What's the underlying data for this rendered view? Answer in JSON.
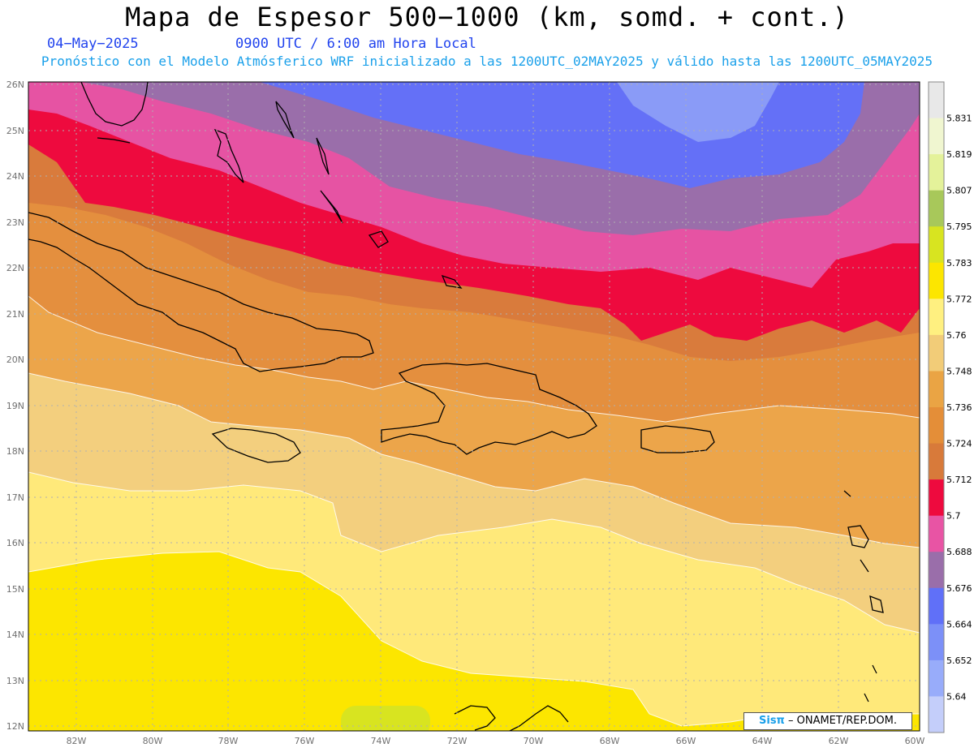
{
  "header": {
    "title": "Mapa de Espesor 500−1000 (km, somd. + cont.)",
    "date": "04−May−2025",
    "time": "0900 UTC / 6:00 am Hora Local",
    "forecast": "Pronóstico con el Modelo Atmósferico WRF inicializado a las 1200UTC_02MAY2025 y válido hasta las  1200UTC_05MAY2025"
  },
  "axes": {
    "lat_labels": [
      "26N",
      "25N",
      "24N",
      "23N",
      "22N",
      "21N",
      "20N",
      "19N",
      "18N",
      "17N",
      "16N",
      "15N",
      "14N",
      "13N",
      "12N"
    ],
    "lon_labels": [
      "82W",
      "80W",
      "78W",
      "76W",
      "74W",
      "72W",
      "70W",
      "68W",
      "66W",
      "64W",
      "62W",
      "60W"
    ]
  },
  "colorbar": {
    "labels": [
      "5.831",
      "5.819",
      "5.807",
      "5.795",
      "5.783",
      "5.772",
      "5.76",
      "5.748",
      "5.736",
      "5.724",
      "5.712",
      "5.7",
      "5.688",
      "5.676",
      "5.664",
      "5.652",
      "5.64"
    ],
    "colors": [
      "#e8e8e8",
      "#f0f6d0",
      "#e4f29a",
      "#a8c85a",
      "#d8e420",
      "#fce600",
      "#fff080",
      "#f2cc78",
      "#eaa444",
      "#e48e38",
      "#d87a3a",
      "#ee0a3e",
      "#e854a4",
      "#9a6eaa",
      "#6070f8",
      "#7c90f8",
      "#98acfa",
      "#c4cefa"
    ]
  },
  "map": {
    "band_colors": [
      "#fce600",
      "#ffe97a",
      "#f3cf7e",
      "#eca54a",
      "#e48f3e",
      "#d97b3c",
      "#ee0a3e",
      "#e653a3",
      "#9a6eaa",
      "#6470f7",
      "#8a9bf7"
    ]
  },
  "credit": {
    "sis": "Sisπ",
    "rest": " – ONAMET/REP.DOM."
  }
}
